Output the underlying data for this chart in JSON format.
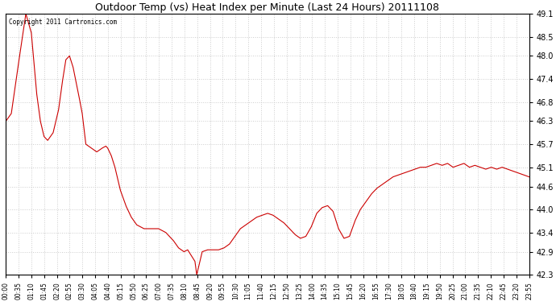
{
  "title": "Outdoor Temp (vs) Heat Index per Minute (Last 24 Hours) 20111108",
  "copyright_text": "Copyright 2011 Cartronics.com",
  "line_color": "#cc0000",
  "background_color": "#ffffff",
  "grid_color": "#cccccc",
  "ylim": [
    42.3,
    49.1
  ],
  "yticks": [
    42.3,
    42.9,
    43.4,
    44.0,
    44.6,
    45.1,
    45.7,
    46.3,
    46.8,
    47.4,
    48.0,
    48.5,
    49.1
  ],
  "xtick_labels": [
    "00:00",
    "00:35",
    "01:10",
    "01:45",
    "02:20",
    "02:55",
    "03:30",
    "04:05",
    "04:40",
    "05:15",
    "05:50",
    "06:25",
    "07:00",
    "07:35",
    "08:10",
    "08:45",
    "09:20",
    "09:55",
    "10:30",
    "11:05",
    "11:40",
    "12:15",
    "12:50",
    "13:25",
    "14:00",
    "14:35",
    "15:10",
    "15:45",
    "16:20",
    "16:55",
    "17:30",
    "18:05",
    "18:40",
    "19:15",
    "19:50",
    "20:25",
    "21:00",
    "21:35",
    "22:10",
    "22:45",
    "23:20",
    "23:55"
  ],
  "key_x": [
    0,
    15,
    30,
    55,
    70,
    85,
    95,
    105,
    115,
    130,
    145,
    155,
    165,
    175,
    185,
    200,
    210,
    220,
    235,
    250,
    265,
    275,
    280,
    290,
    300,
    315,
    330,
    345,
    360,
    380,
    400,
    420,
    440,
    460,
    475,
    490,
    500,
    510,
    520,
    525,
    530,
    540,
    555,
    570,
    585,
    600,
    615,
    630,
    645,
    660,
    675,
    690,
    705,
    720,
    735,
    750,
    765,
    780,
    795,
    810,
    825,
    840,
    855,
    870,
    885,
    900,
    915,
    930,
    945,
    960,
    975,
    990,
    1005,
    1020,
    1035,
    1050,
    1065,
    1080,
    1095,
    1110,
    1125,
    1140,
    1155,
    1170,
    1185,
    1200,
    1215,
    1230,
    1245,
    1260,
    1275,
    1290,
    1305,
    1320,
    1335,
    1350,
    1365,
    1380,
    1395,
    1410,
    1425,
    1439
  ],
  "key_y": [
    46.3,
    46.5,
    47.5,
    49.1,
    48.6,
    47.0,
    46.3,
    45.9,
    45.8,
    46.0,
    46.6,
    47.3,
    47.9,
    48.0,
    47.7,
    47.0,
    46.5,
    45.7,
    45.6,
    45.5,
    45.6,
    45.65,
    45.6,
    45.4,
    45.1,
    44.5,
    44.1,
    43.8,
    43.6,
    43.5,
    43.5,
    43.5,
    43.4,
    43.2,
    43.0,
    42.9,
    42.95,
    42.8,
    42.65,
    42.3,
    42.5,
    42.9,
    42.95,
    42.95,
    42.95,
    43.0,
    43.1,
    43.3,
    43.5,
    43.6,
    43.7,
    43.8,
    43.85,
    43.9,
    43.85,
    43.75,
    43.65,
    43.5,
    43.35,
    43.25,
    43.3,
    43.55,
    43.9,
    44.05,
    44.1,
    43.95,
    43.5,
    43.25,
    43.3,
    43.7,
    44.0,
    44.2,
    44.4,
    44.55,
    44.65,
    44.75,
    44.85,
    44.9,
    44.95,
    45.0,
    45.05,
    45.1,
    45.1,
    45.15,
    45.2,
    45.15,
    45.2,
    45.1,
    45.15,
    45.2,
    45.1,
    45.15,
    45.1,
    45.05,
    45.1,
    45.05,
    45.1,
    45.05,
    45.0,
    44.95,
    44.9,
    44.85
  ]
}
